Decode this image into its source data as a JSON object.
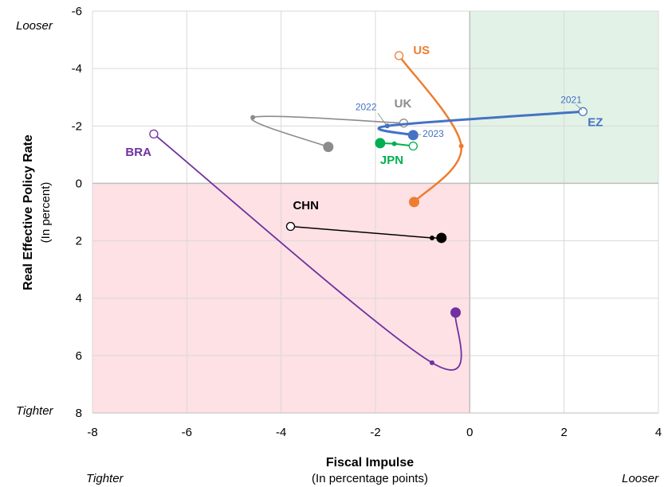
{
  "chart_data": {
    "type": "scatter",
    "title": "",
    "xlabel": "Fiscal Impulse",
    "xlabel_sub": "(In percentage points)",
    "ylabel": "Real Effective Policy Rate",
    "ylabel_sub": "(In percent)",
    "xlim": [
      -8,
      4
    ],
    "ylim": [
      -6,
      8
    ],
    "y_inverted": true,
    "xticks": [
      -8,
      -6,
      -4,
      -2,
      0,
      2,
      4
    ],
    "yticks": [
      -6,
      -4,
      -2,
      0,
      2,
      4,
      6,
      8
    ],
    "grid": true,
    "corner_labels": {
      "top_left": "Looser",
      "bottom_left_y": "Tighter",
      "bottom_left_x": "Tighter",
      "bottom_right_x": "Looser"
    },
    "shaded_regions": [
      {
        "quadrant": "x<0, y>0",
        "color": "#fde1e4",
        "meaning": "tighter"
      },
      {
        "quadrant": "x>0, y<0",
        "color": "#e2f2e6",
        "meaning": "looser"
      }
    ],
    "series": [
      {
        "name": "US",
        "color": "#ED7D31",
        "smooth": true,
        "x": [
          -1.5,
          -0.18,
          -1.18
        ],
        "y": [
          -4.45,
          -1.3,
          0.65
        ]
      },
      {
        "name": "UK",
        "color": "#8C8C8C",
        "smooth": true,
        "x": [
          -1.4,
          -4.6,
          -3.0
        ],
        "y": [
          -2.1,
          -2.3,
          -1.27
        ]
      },
      {
        "name": "EZ",
        "color": "#4472C4",
        "smooth": true,
        "x": [
          2.4,
          -1.75,
          -1.2
        ],
        "y": [
          -2.5,
          -2.0,
          -1.68
        ]
      },
      {
        "name": "JPN",
        "color": "#00B050",
        "smooth": false,
        "x": [
          -1.2,
          -1.6,
          -1.9
        ],
        "y": [
          -1.3,
          -1.38,
          -1.4
        ]
      },
      {
        "name": "CHN",
        "color": "#000000",
        "smooth": false,
        "x": [
          -3.8,
          -0.8,
          -0.6
        ],
        "y": [
          1.5,
          1.9,
          1.9
        ]
      },
      {
        "name": "BRA",
        "color": "#7030A0",
        "smooth": true,
        "x": [
          -6.7,
          -0.8,
          -0.3
        ],
        "y": [
          -1.72,
          6.25,
          4.5
        ]
      }
    ],
    "year_annotations": [
      {
        "text": "2021",
        "series": "EZ"
      },
      {
        "text": "2022",
        "series": "EZ"
      },
      {
        "text": "2023",
        "series": "EZ"
      }
    ]
  }
}
